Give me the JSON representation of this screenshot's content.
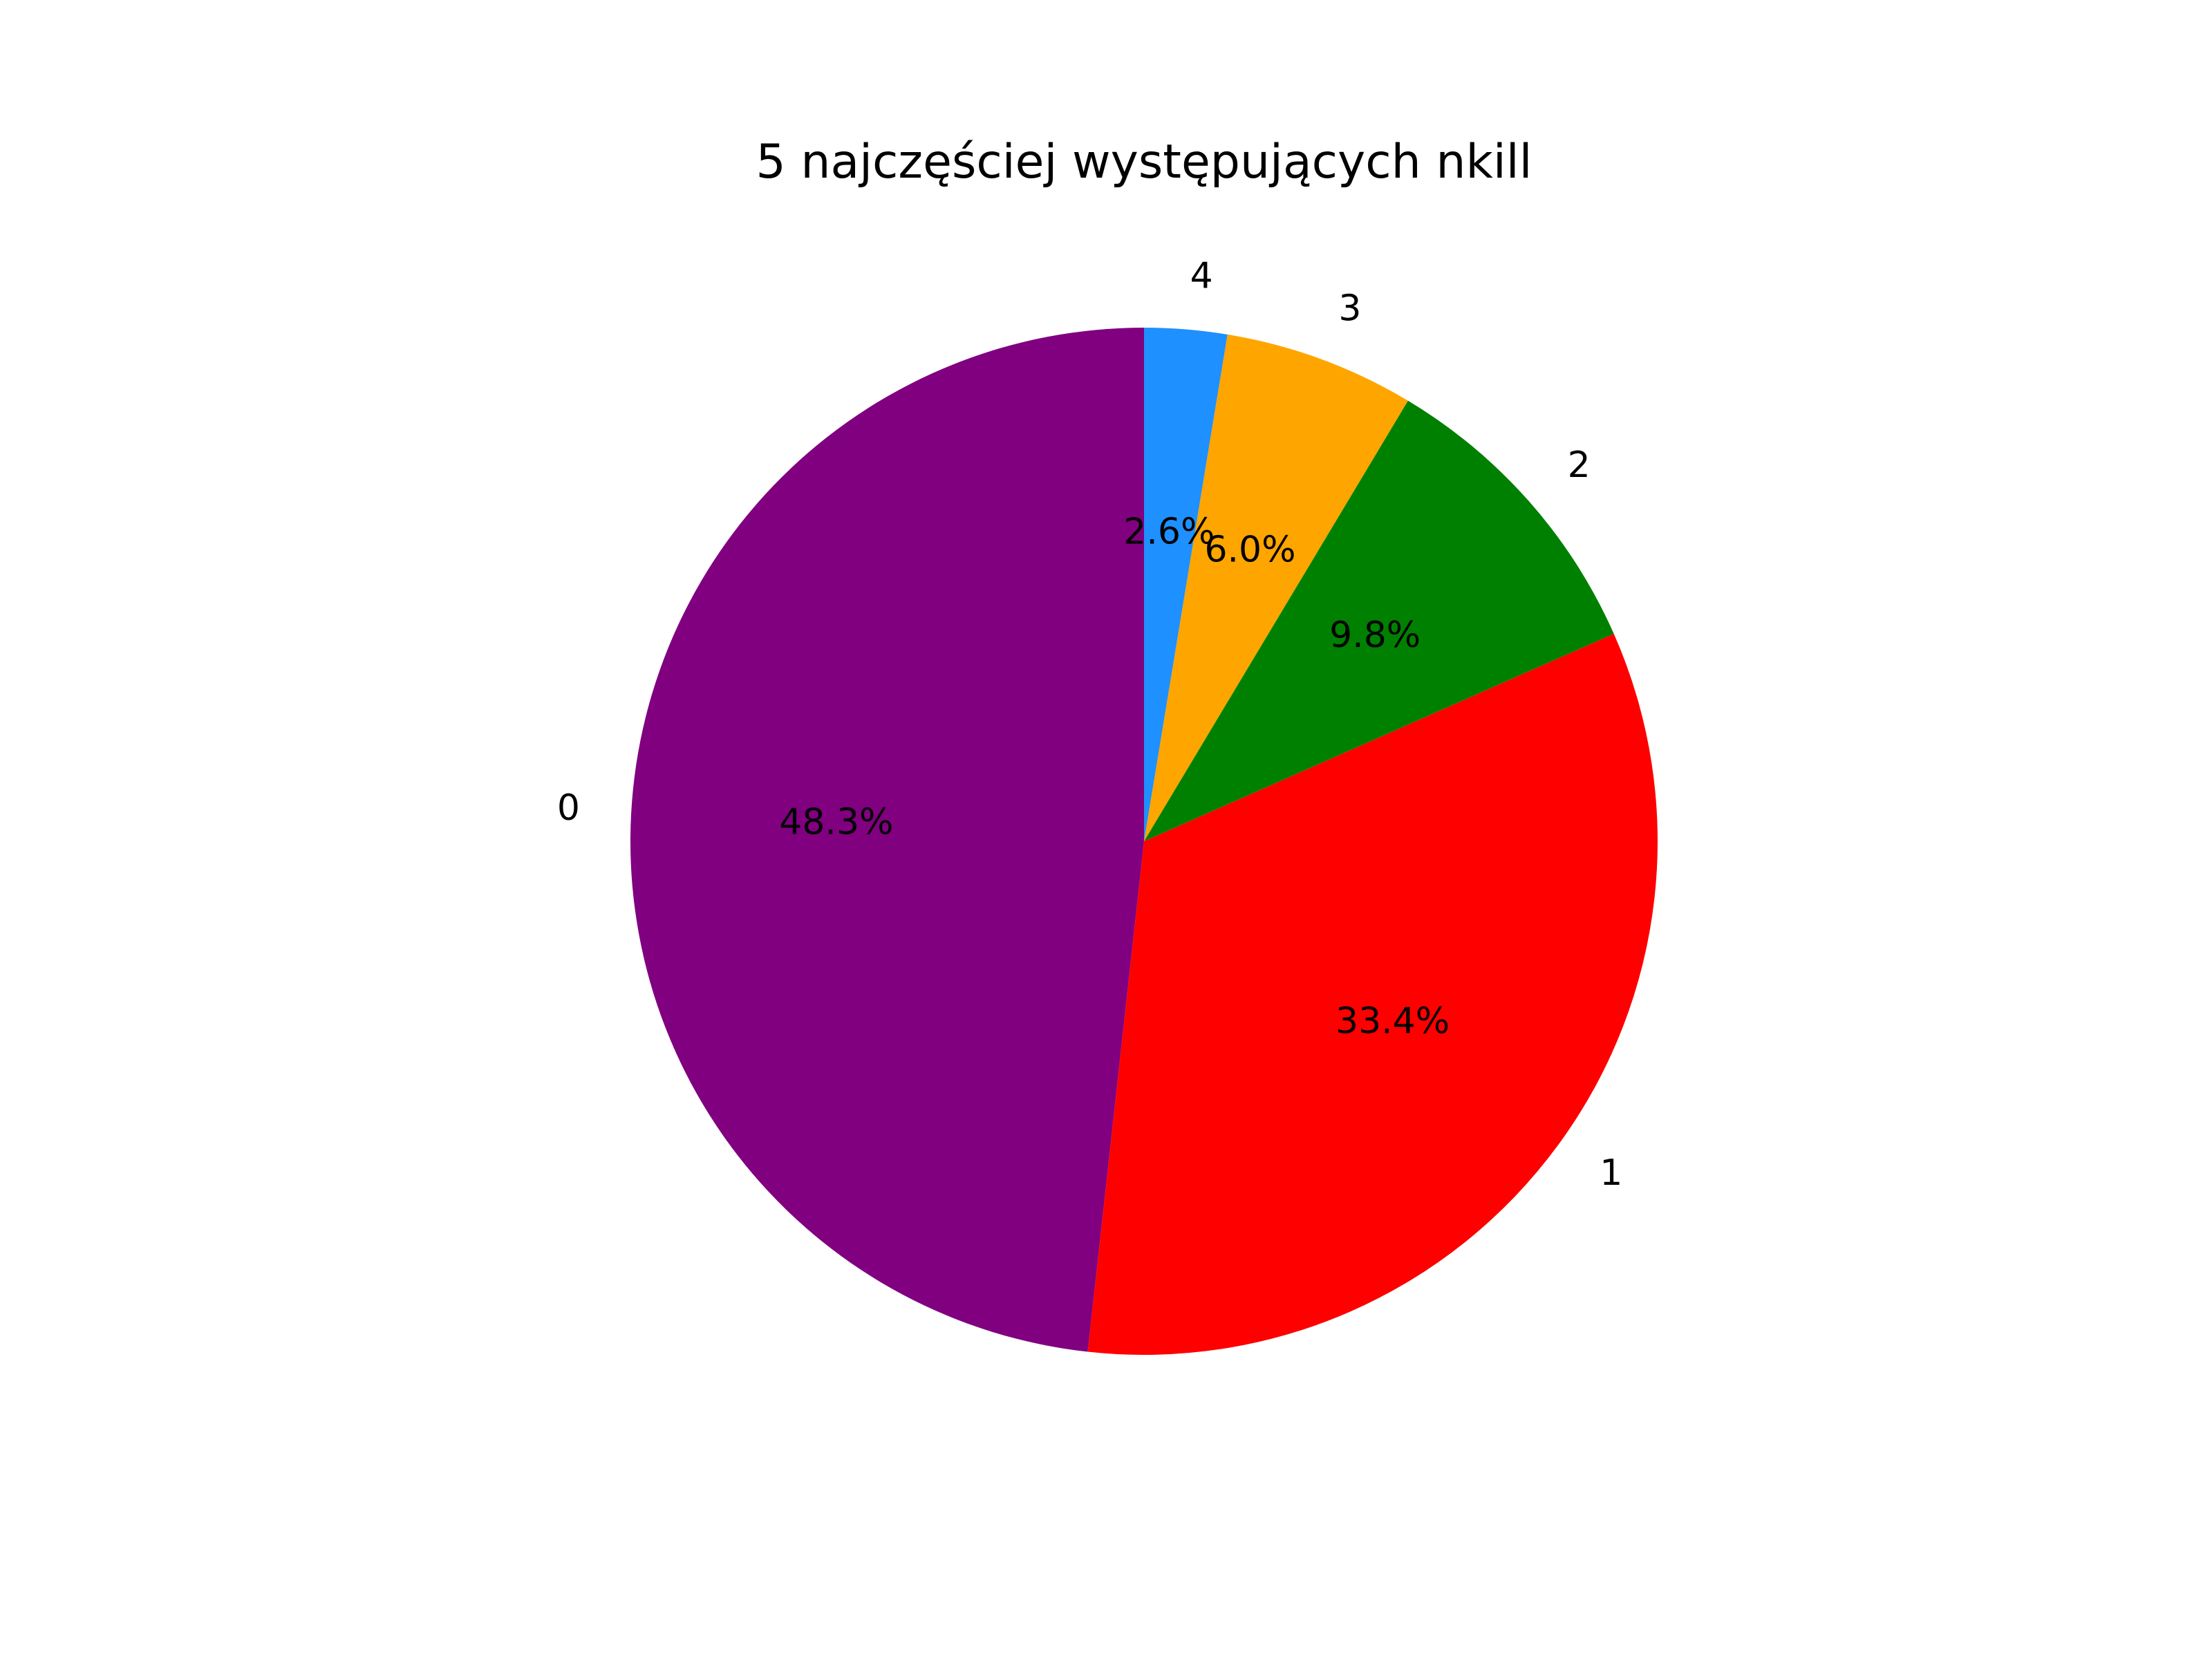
{
  "chart_data": {
    "type": "pie",
    "title": "5 najczęściej występujących nkill",
    "categories": [
      "0",
      "1",
      "2",
      "3",
      "4"
    ],
    "values": [
      48.3,
      33.4,
      9.8,
      6.0,
      2.6
    ],
    "percent_labels": [
      "48.3%",
      "33.4%",
      "9.8%",
      "6.0%",
      "2.6%"
    ],
    "colors": [
      "#800080",
      "#ff0000",
      "#008000",
      "#ffa500",
      "#1e90ff"
    ],
    "start_angle_deg": 90,
    "direction": "counterclockwise",
    "legend": "none"
  }
}
